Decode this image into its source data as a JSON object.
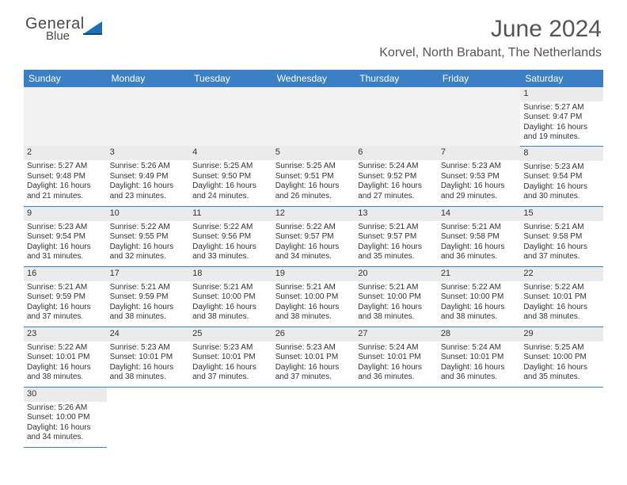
{
  "logo": {
    "word1": "General",
    "word2": "Blue"
  },
  "header": {
    "title": "June 2024",
    "location": "Korvel, North Brabant, The Netherlands"
  },
  "colors": {
    "header_bg": "#3b7fc4",
    "header_text": "#ffffff",
    "daynum_bg": "#ebebeb",
    "border": "#3b7fc4",
    "logo_triangle": "#1f6fb3"
  },
  "weekdays": [
    "Sunday",
    "Monday",
    "Tuesday",
    "Wednesday",
    "Thursday",
    "Friday",
    "Saturday"
  ],
  "cells": [
    [
      null,
      null,
      null,
      null,
      null,
      null,
      {
        "n": "1",
        "sr": "Sunrise: 5:27 AM",
        "ss": "Sunset: 9:47 PM",
        "dl": "Daylight: 16 hours and 19 minutes."
      }
    ],
    [
      {
        "n": "2",
        "sr": "Sunrise: 5:27 AM",
        "ss": "Sunset: 9:48 PM",
        "dl": "Daylight: 16 hours and 21 minutes."
      },
      {
        "n": "3",
        "sr": "Sunrise: 5:26 AM",
        "ss": "Sunset: 9:49 PM",
        "dl": "Daylight: 16 hours and 23 minutes."
      },
      {
        "n": "4",
        "sr": "Sunrise: 5:25 AM",
        "ss": "Sunset: 9:50 PM",
        "dl": "Daylight: 16 hours and 24 minutes."
      },
      {
        "n": "5",
        "sr": "Sunrise: 5:25 AM",
        "ss": "Sunset: 9:51 PM",
        "dl": "Daylight: 16 hours and 26 minutes."
      },
      {
        "n": "6",
        "sr": "Sunrise: 5:24 AM",
        "ss": "Sunset: 9:52 PM",
        "dl": "Daylight: 16 hours and 27 minutes."
      },
      {
        "n": "7",
        "sr": "Sunrise: 5:23 AM",
        "ss": "Sunset: 9:53 PM",
        "dl": "Daylight: 16 hours and 29 minutes."
      },
      {
        "n": "8",
        "sr": "Sunrise: 5:23 AM",
        "ss": "Sunset: 9:54 PM",
        "dl": "Daylight: 16 hours and 30 minutes."
      }
    ],
    [
      {
        "n": "9",
        "sr": "Sunrise: 5:23 AM",
        "ss": "Sunset: 9:54 PM",
        "dl": "Daylight: 16 hours and 31 minutes."
      },
      {
        "n": "10",
        "sr": "Sunrise: 5:22 AM",
        "ss": "Sunset: 9:55 PM",
        "dl": "Daylight: 16 hours and 32 minutes."
      },
      {
        "n": "11",
        "sr": "Sunrise: 5:22 AM",
        "ss": "Sunset: 9:56 PM",
        "dl": "Daylight: 16 hours and 33 minutes."
      },
      {
        "n": "12",
        "sr": "Sunrise: 5:22 AM",
        "ss": "Sunset: 9:57 PM",
        "dl": "Daylight: 16 hours and 34 minutes."
      },
      {
        "n": "13",
        "sr": "Sunrise: 5:21 AM",
        "ss": "Sunset: 9:57 PM",
        "dl": "Daylight: 16 hours and 35 minutes."
      },
      {
        "n": "14",
        "sr": "Sunrise: 5:21 AM",
        "ss": "Sunset: 9:58 PM",
        "dl": "Daylight: 16 hours and 36 minutes."
      },
      {
        "n": "15",
        "sr": "Sunrise: 5:21 AM",
        "ss": "Sunset: 9:58 PM",
        "dl": "Daylight: 16 hours and 37 minutes."
      }
    ],
    [
      {
        "n": "16",
        "sr": "Sunrise: 5:21 AM",
        "ss": "Sunset: 9:59 PM",
        "dl": "Daylight: 16 hours and 37 minutes."
      },
      {
        "n": "17",
        "sr": "Sunrise: 5:21 AM",
        "ss": "Sunset: 9:59 PM",
        "dl": "Daylight: 16 hours and 38 minutes."
      },
      {
        "n": "18",
        "sr": "Sunrise: 5:21 AM",
        "ss": "Sunset: 10:00 PM",
        "dl": "Daylight: 16 hours and 38 minutes."
      },
      {
        "n": "19",
        "sr": "Sunrise: 5:21 AM",
        "ss": "Sunset: 10:00 PM",
        "dl": "Daylight: 16 hours and 38 minutes."
      },
      {
        "n": "20",
        "sr": "Sunrise: 5:21 AM",
        "ss": "Sunset: 10:00 PM",
        "dl": "Daylight: 16 hours and 38 minutes."
      },
      {
        "n": "21",
        "sr": "Sunrise: 5:22 AM",
        "ss": "Sunset: 10:00 PM",
        "dl": "Daylight: 16 hours and 38 minutes."
      },
      {
        "n": "22",
        "sr": "Sunrise: 5:22 AM",
        "ss": "Sunset: 10:01 PM",
        "dl": "Daylight: 16 hours and 38 minutes."
      }
    ],
    [
      {
        "n": "23",
        "sr": "Sunrise: 5:22 AM",
        "ss": "Sunset: 10:01 PM",
        "dl": "Daylight: 16 hours and 38 minutes."
      },
      {
        "n": "24",
        "sr": "Sunrise: 5:23 AM",
        "ss": "Sunset: 10:01 PM",
        "dl": "Daylight: 16 hours and 38 minutes."
      },
      {
        "n": "25",
        "sr": "Sunrise: 5:23 AM",
        "ss": "Sunset: 10:01 PM",
        "dl": "Daylight: 16 hours and 37 minutes."
      },
      {
        "n": "26",
        "sr": "Sunrise: 5:23 AM",
        "ss": "Sunset: 10:01 PM",
        "dl": "Daylight: 16 hours and 37 minutes."
      },
      {
        "n": "27",
        "sr": "Sunrise: 5:24 AM",
        "ss": "Sunset: 10:01 PM",
        "dl": "Daylight: 16 hours and 36 minutes."
      },
      {
        "n": "28",
        "sr": "Sunrise: 5:24 AM",
        "ss": "Sunset: 10:01 PM",
        "dl": "Daylight: 16 hours and 36 minutes."
      },
      {
        "n": "29",
        "sr": "Sunrise: 5:25 AM",
        "ss": "Sunset: 10:00 PM",
        "dl": "Daylight: 16 hours and 35 minutes."
      }
    ],
    [
      {
        "n": "30",
        "sr": "Sunrise: 5:26 AM",
        "ss": "Sunset: 10:00 PM",
        "dl": "Daylight: 16 hours and 34 minutes."
      },
      null,
      null,
      null,
      null,
      null,
      null
    ]
  ]
}
